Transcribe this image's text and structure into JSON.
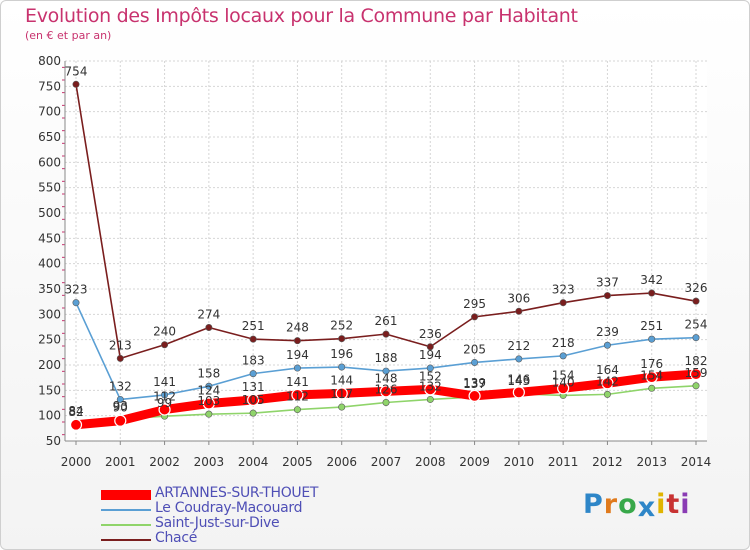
{
  "header": {
    "title": "Evolution des Impôts locaux pour la Commune par Habitant",
    "subtitle": "(en € et par an)"
  },
  "logo": {
    "text": "Proxiti",
    "letter_colors": [
      "#2e86c8",
      "#e07a1c",
      "#38a84a",
      "#2e86c8",
      "#e0b400",
      "#c83232",
      "#8a3cb4"
    ]
  },
  "chart_data": {
    "type": "line",
    "x": [
      "2000",
      "2001",
      "2002",
      "2003",
      "2004",
      "2005",
      "2006",
      "2007",
      "2008",
      "2009",
      "2010",
      "2011",
      "2012",
      "2013",
      "2014"
    ],
    "ylim": [
      50,
      800
    ],
    "yticks": [
      "50",
      "100",
      "150",
      "200",
      "250",
      "300",
      "350",
      "400",
      "450",
      "500",
      "550",
      "600",
      "650",
      "700",
      "750",
      "800"
    ],
    "grid": true,
    "legend_position": "bottom-left",
    "series": [
      {
        "name": "ARTANNES-SUR-THOUET",
        "color": "#ff0000",
        "values": [
          82,
          90,
          112,
          124,
          131,
          141,
          144,
          148,
          152,
          139,
          146,
          154,
          164,
          176,
          182
        ],
        "labels": [
          "82",
          "90",
          "112",
          "124",
          "131",
          "141",
          "144",
          "148",
          "152",
          "139",
          "146",
          "154",
          "164",
          "176",
          "182"
        ]
      },
      {
        "name": "Le Coudray-Macouard",
        "color": "#5a9fd4",
        "values": [
          323,
          132,
          141,
          158,
          183,
          194,
          196,
          188,
          194,
          205,
          212,
          218,
          239,
          251,
          254
        ],
        "labels": [
          "323",
          "132",
          "141",
          "158",
          "183",
          "194",
          "196",
          "188",
          "194",
          "205",
          "212",
          "218",
          "239",
          "251",
          "254"
        ]
      },
      {
        "name": "Saint-Just-sur-Dive",
        "color": "#8fd46a",
        "values": [
          84,
          93,
          99,
          103,
          105,
          112,
          117,
          126,
          132,
          137,
          143,
          140,
          142,
          154,
          159
        ],
        "labels": [
          "84",
          "93",
          "99",
          "103",
          "105",
          "112",
          "117",
          "126",
          "132",
          "137",
          "143",
          "140",
          "142",
          "154",
          "159"
        ]
      },
      {
        "name": "Chacé",
        "color": "#7a1e1e",
        "values": [
          754,
          213,
          240,
          274,
          251,
          248,
          252,
          261,
          236,
          295,
          306,
          323,
          337,
          342,
          326
        ],
        "labels": [
          "754",
          "213",
          "240",
          "274",
          "251",
          "248",
          "252",
          "261",
          "236",
          "295",
          "306",
          "323",
          "337",
          "342",
          "326"
        ]
      }
    ]
  }
}
